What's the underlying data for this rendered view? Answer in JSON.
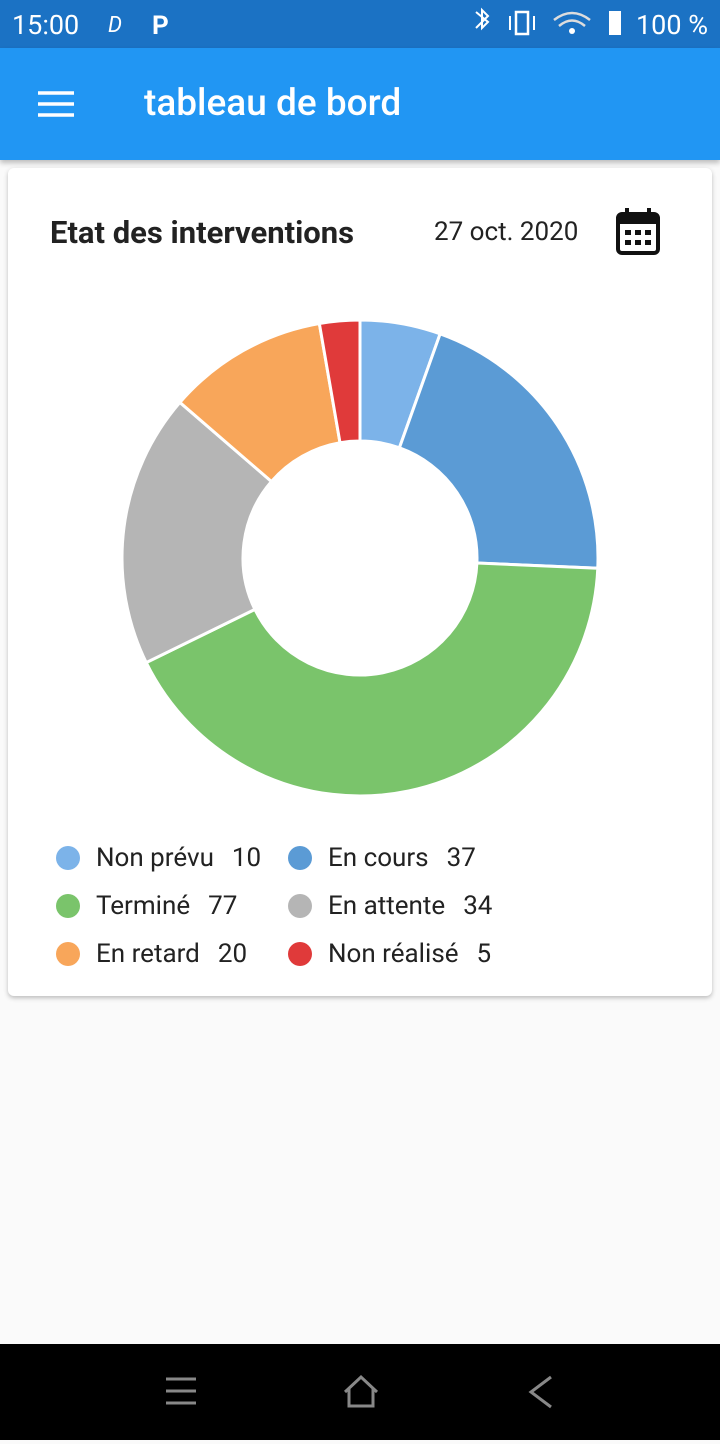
{
  "status_bar": {
    "time": "15:00",
    "battery": "100 %"
  },
  "app_bar": {
    "title": "tableau de bord"
  },
  "card": {
    "title": "Etat des interventions",
    "date": "27 oct. 2020"
  },
  "chart_data": {
    "type": "donut",
    "categories": [
      "Non prévu",
      "En cours",
      "Terminé",
      "En attente",
      "En retard",
      "Non réalisé"
    ],
    "values": [
      10,
      37,
      77,
      34,
      20,
      5
    ],
    "colors": [
      "#7cb3e9",
      "#5b9bd5",
      "#7ac46b",
      "#b5b5b5",
      "#f8a65a",
      "#e03a3a"
    ]
  }
}
